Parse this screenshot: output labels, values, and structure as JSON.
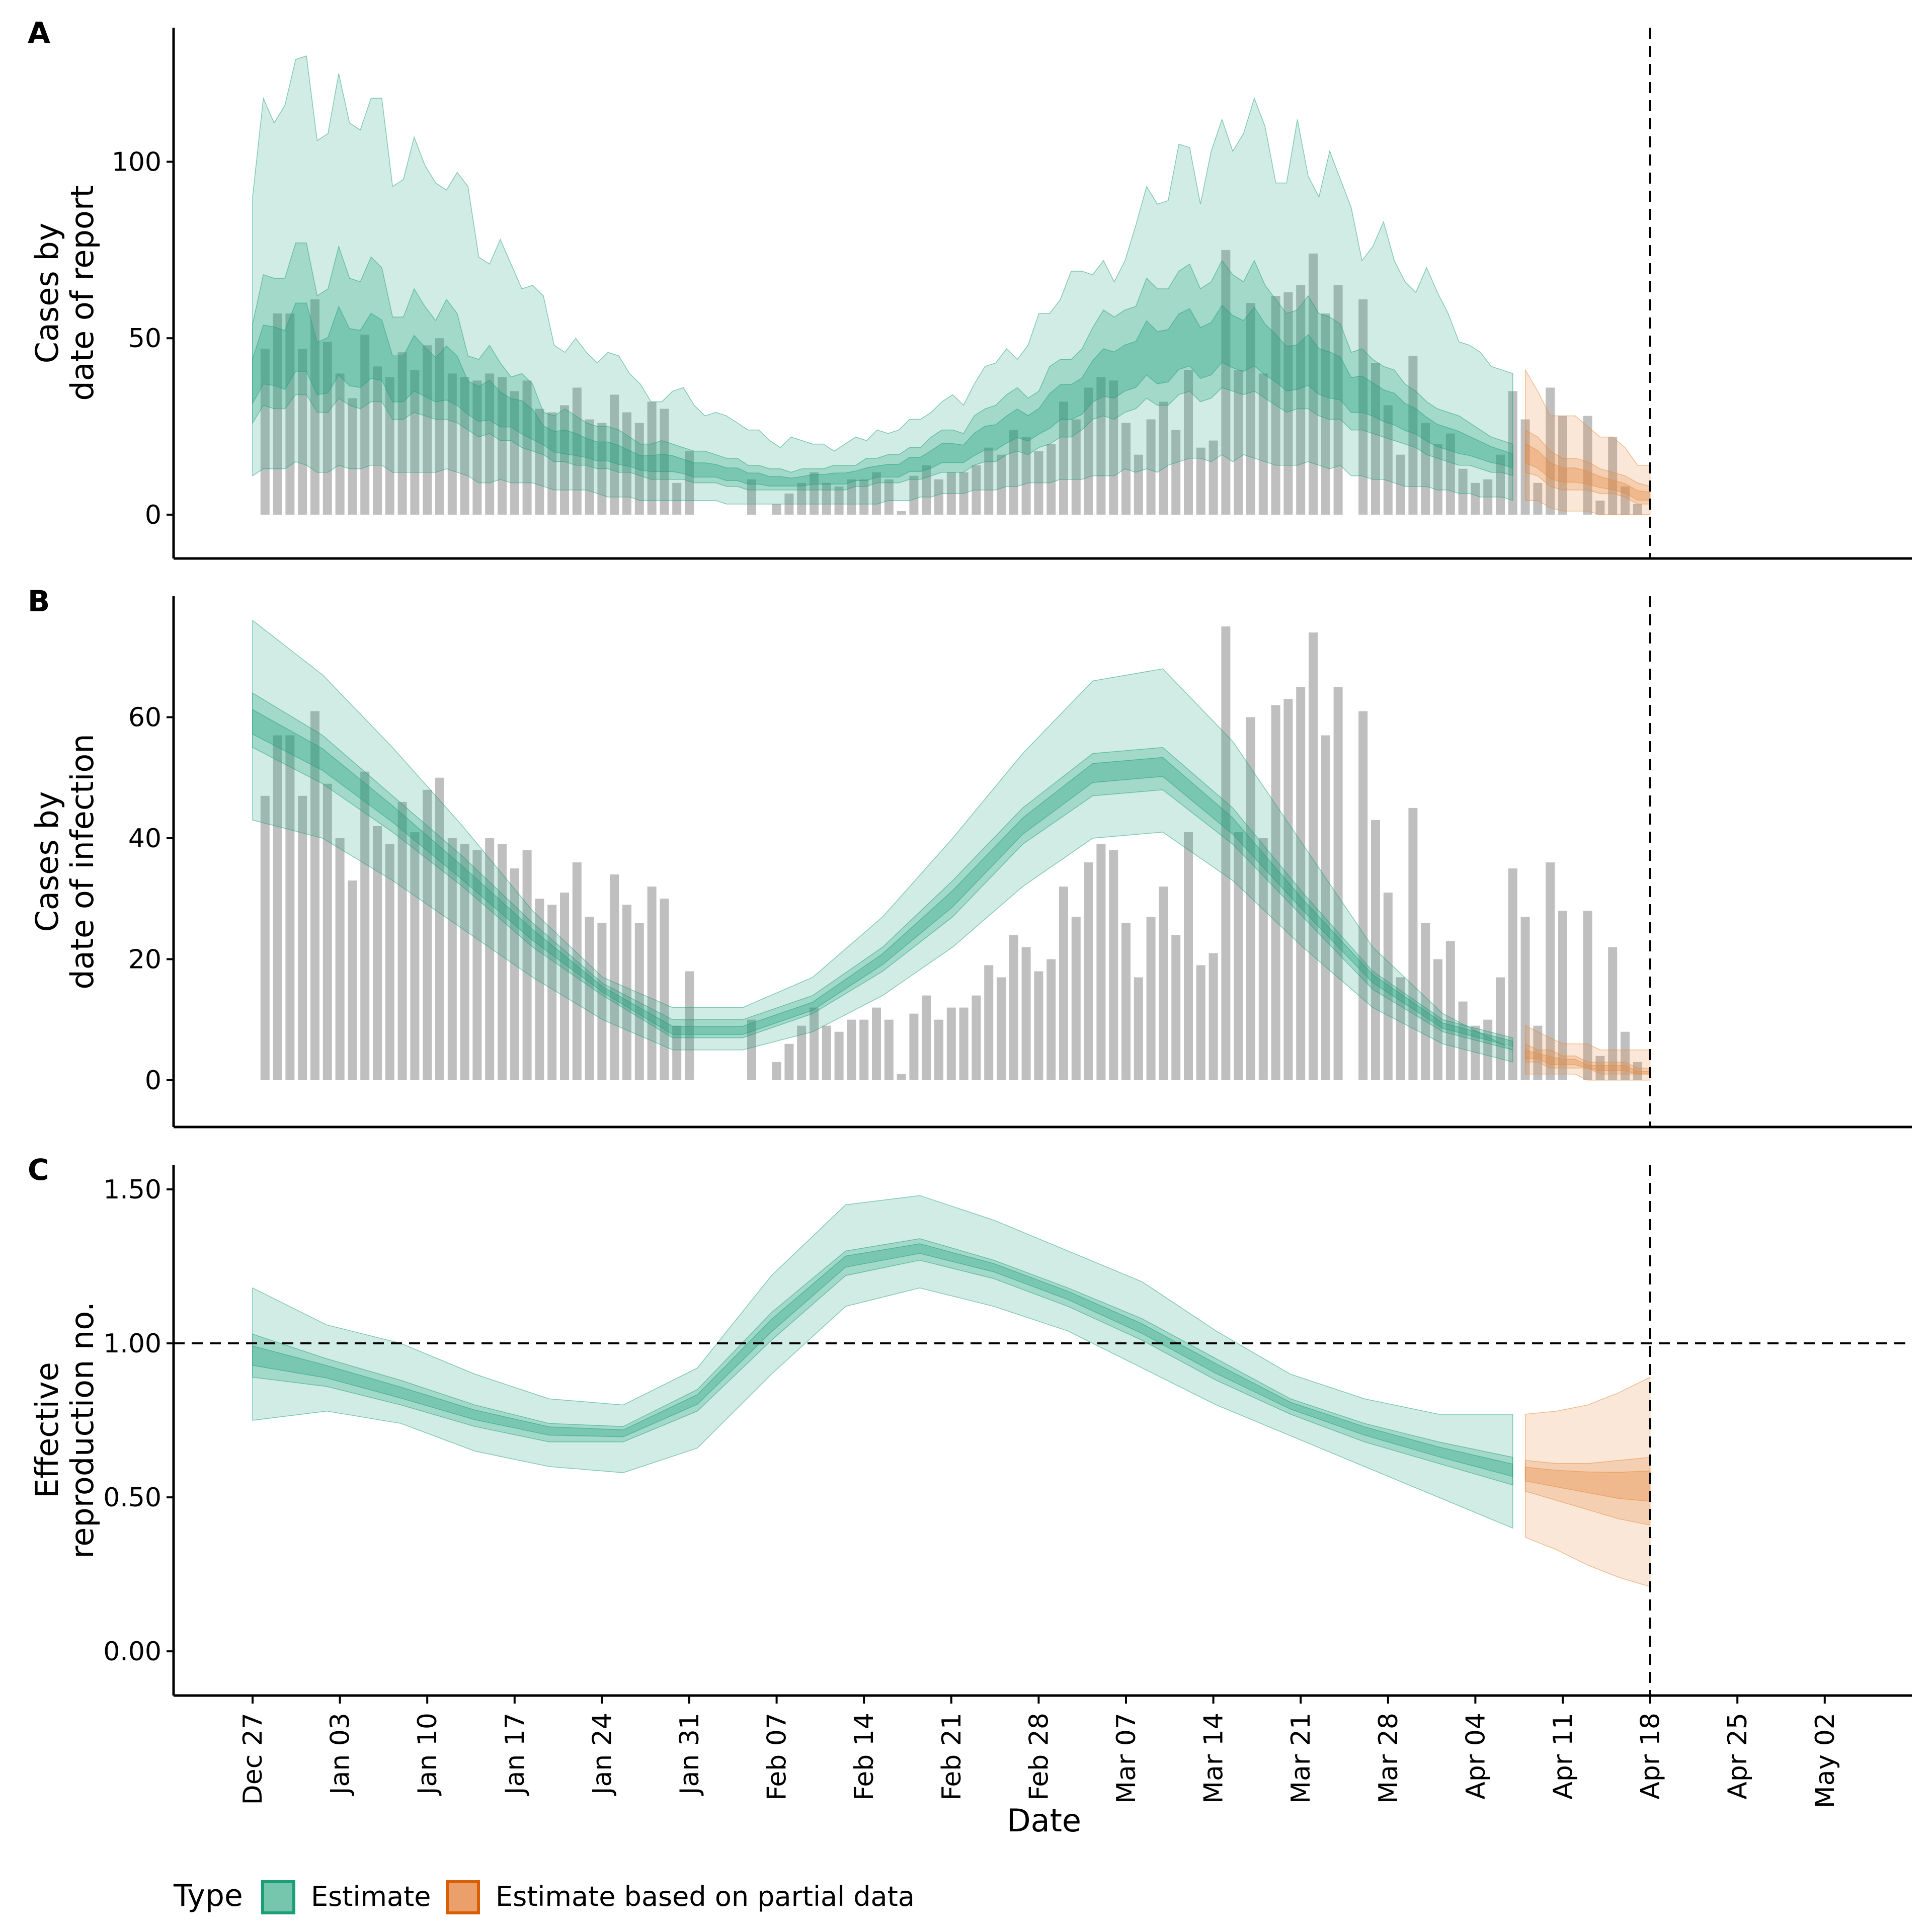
{
  "colors": {
    "estimate_fill": "#1b9e77",
    "partial_fill": "#e6873a",
    "estimate_legend": "#76c6ae",
    "estimate_legend_border": "#1b9e77",
    "partial_legend": "#eba06b",
    "partial_legend_border": "#d95f02",
    "bars": "#a6a6a6"
  },
  "legend": {
    "title": "Type",
    "items": [
      {
        "label": "Estimate"
      },
      {
        "label": "Estimate based on partial data"
      }
    ]
  },
  "chart_data": [
    {
      "type": "area",
      "panel": "A",
      "ylabel_line1": "Cases by",
      "ylabel_line2": "date of report",
      "ylim": [
        -6,
        138
      ],
      "yticks": [
        0,
        50,
        100
      ],
      "ytick_labels": [
        "0",
        "50",
        "100"
      ],
      "series_note": "Observed cases (bars) with median, 50% and 90% credible intervals for reported cases",
      "estimate": {
        "start_date": "Dec 27",
        "end_date": "Apr 07",
        "upper90": [
          90,
          118,
          111,
          116,
          129,
          130,
          106,
          108,
          125,
          111,
          109,
          118,
          118,
          93,
          95,
          107,
          99,
          94,
          92,
          97,
          93,
          73,
          71,
          78,
          71,
          64,
          65,
          62,
          48,
          46,
          50,
          46,
          43,
          46,
          45,
          40,
          37,
          32,
          32,
          35,
          36,
          31,
          28,
          29,
          28,
          26,
          24,
          24,
          21,
          19,
          22,
          21,
          20,
          20,
          18,
          20,
          22,
          21,
          24,
          23,
          24,
          27,
          27,
          29,
          32,
          34,
          31,
          37,
          42,
          43,
          47,
          44,
          48,
          57,
          57,
          61,
          69,
          69,
          68,
          72,
          66,
          72,
          82,
          93,
          88,
          89,
          105,
          104,
          88,
          103,
          112,
          103,
          108,
          118,
          110,
          94,
          94,
          112,
          96,
          90,
          103,
          95,
          87,
          72,
          76,
          83,
          72,
          66,
          63,
          70,
          63,
          57,
          49,
          48,
          46,
          42,
          41,
          40
        ],
        "upper50": [
          54,
          68,
          67,
          67,
          77,
          77,
          62,
          64,
          76,
          67,
          66,
          73,
          70,
          56,
          56,
          64,
          59,
          55,
          61,
          57,
          45,
          44,
          48,
          43,
          39,
          40,
          37,
          29,
          28,
          30,
          28,
          26,
          25,
          25,
          24,
          22,
          20,
          20,
          21,
          20,
          19,
          18,
          18,
          17,
          16,
          16,
          14,
          14,
          13,
          13,
          12,
          13,
          13,
          13,
          14,
          14,
          14,
          16,
          16,
          17,
          17,
          19,
          19,
          22,
          24,
          24,
          23,
          28,
          30,
          31,
          34,
          36,
          33,
          35,
          42,
          44,
          44,
          47,
          53,
          58,
          56,
          58,
          59,
          67,
          64,
          64,
          69,
          71,
          64,
          66,
          72,
          68,
          66,
          72,
          65,
          61,
          57,
          58,
          62,
          57,
          56,
          54,
          46,
          47,
          44,
          42,
          41,
          37,
          35,
          32,
          30,
          29,
          28,
          26,
          24,
          22,
          21,
          20
        ],
        "median": [
          36,
          42,
          42,
          40,
          46,
          46,
          38,
          39,
          45,
          41,
          41,
          44,
          43,
          36,
          36,
          40,
          38,
          36,
          37,
          35,
          32,
          30,
          30,
          28,
          28,
          26,
          24,
          22,
          20,
          19,
          19,
          18,
          17,
          17,
          16,
          15,
          14,
          14,
          14,
          14,
          13,
          12,
          12,
          12,
          11,
          11,
          10,
          10,
          9,
          9,
          9,
          9,
          10,
          10,
          10,
          10,
          11,
          11,
          12,
          12,
          12,
          14,
          14,
          15,
          17,
          17,
          17,
          19,
          21,
          21,
          23,
          25,
          24,
          26,
          28,
          31,
          31,
          32,
          36,
          38,
          38,
          40,
          41,
          45,
          42,
          43,
          47,
          48,
          44,
          45,
          49,
          47,
          46,
          48,
          45,
          43,
          40,
          40,
          42,
          39,
          38,
          37,
          33,
          33,
          32,
          30,
          29,
          27,
          26,
          24,
          22,
          21,
          20,
          19,
          18,
          17,
          16,
          15
        ],
        "lower50": [
          26,
          31,
          30,
          30,
          34,
          34,
          29,
          29,
          33,
          31,
          30,
          32,
          32,
          27,
          27,
          29,
          28,
          27,
          27,
          26,
          24,
          22,
          23,
          21,
          21,
          19,
          18,
          17,
          15,
          15,
          14,
          14,
          13,
          13,
          12,
          12,
          11,
          10,
          10,
          10,
          10,
          9,
          9,
          9,
          8,
          8,
          7,
          7,
          7,
          7,
          7,
          7,
          7,
          7,
          7,
          7,
          8,
          8,
          9,
          9,
          9,
          10,
          10,
          11,
          12,
          12,
          12,
          14,
          15,
          15,
          17,
          18,
          17,
          19,
          20,
          22,
          22,
          24,
          27,
          28,
          27,
          29,
          30,
          33,
          31,
          31,
          34,
          35,
          32,
          33,
          36,
          35,
          34,
          35,
          33,
          31,
          29,
          30,
          30,
          28,
          27,
          27,
          24,
          24,
          23,
          22,
          21,
          20,
          19,
          17,
          16,
          15,
          14,
          14,
          13,
          12,
          12,
          11
        ],
        "lower90": [
          11,
          13,
          13,
          13,
          15,
          14,
          12,
          12,
          14,
          13,
          13,
          14,
          14,
          12,
          12,
          12,
          12,
          12,
          13,
          12,
          11,
          9,
          9,
          10,
          9,
          9,
          9,
          8,
          7,
          7,
          7,
          7,
          6,
          5,
          5,
          5,
          4,
          4,
          4,
          4,
          4,
          4,
          4,
          4,
          3,
          3,
          3,
          3,
          3,
          3,
          3,
          3,
          3,
          3,
          3,
          3,
          3,
          3,
          3,
          4,
          4,
          4,
          5,
          5,
          6,
          6,
          6,
          7,
          7,
          7,
          8,
          8,
          9,
          9,
          9,
          10,
          10,
          10,
          11,
          11,
          11,
          13,
          12,
          13,
          12,
          14,
          15,
          16,
          16,
          15,
          17,
          15,
          17,
          16,
          15,
          14,
          14,
          14,
          15,
          14,
          13,
          14,
          11,
          11,
          10,
          10,
          9,
          8,
          8,
          8,
          7,
          7,
          6,
          6,
          5,
          5,
          5,
          4
        ]
      },
      "partial": {
        "start_date": "Apr 08",
        "end_date": "Apr 18",
        "upper90": [
          41,
          35,
          28,
          28,
          28,
          25,
          22,
          22,
          19,
          14,
          14
        ],
        "upper50": [
          24,
          22,
          18,
          16,
          16,
          15,
          13,
          12,
          11,
          9,
          8
        ],
        "median": [
          17,
          15,
          12,
          11,
          11,
          10,
          9,
          8,
          7,
          5,
          5
        ],
        "lower50": [
          12,
          11,
          8,
          7,
          7,
          7,
          6,
          6,
          5,
          3,
          3
        ],
        "lower90": [
          4,
          4,
          2,
          1,
          1,
          1,
          0,
          0,
          0,
          0,
          0
        ]
      }
    },
    {
      "type": "area",
      "panel": "B",
      "ylabel_line1": "Cases by",
      "ylabel_line2": "date of infection",
      "ylim": [
        -4,
        80
      ],
      "yticks": [
        0,
        20,
        40,
        60
      ],
      "ytick_labels": [
        "0",
        "20",
        "40",
        "60"
      ],
      "observed_bars": {
        "start_date": "Dec 28",
        "values": [
          47,
          57,
          57,
          47,
          61,
          49,
          40,
          33,
          51,
          42,
          39,
          46,
          41,
          48,
          50,
          40,
          39,
          38,
          40,
          39,
          35,
          38,
          30,
          29,
          31,
          36,
          27,
          26,
          34,
          29,
          26,
          32,
          30,
          9,
          18,
          0,
          0,
          0,
          0,
          10,
          0,
          3,
          6,
          9,
          12,
          9,
          8,
          10,
          10,
          12,
          10,
          1,
          11,
          14,
          10,
          12,
          12,
          14,
          19,
          17,
          24,
          22,
          18,
          20,
          32,
          27,
          36,
          39,
          38,
          26,
          17,
          27,
          32,
          24,
          41,
          19,
          21,
          75,
          41,
          60,
          40,
          62,
          63,
          65,
          74,
          57,
          65,
          0,
          61,
          43,
          31,
          17,
          45,
          26,
          20,
          23,
          13,
          9,
          10,
          17,
          35,
          27,
          9,
          36,
          28,
          0,
          28,
          4,
          22,
          8,
          3
        ]
      },
      "estimate": {
        "start_date": "Dec 27",
        "end_date": "Apr 07",
        "points_every_days": 7,
        "upper90": [
          76,
          67,
          55,
          42,
          28,
          17,
          12,
          12,
          17,
          27,
          40,
          54,
          66,
          68,
          56,
          39,
          22,
          11,
          5
        ],
        "upper50": [
          64,
          57,
          47,
          37,
          26,
          16,
          10,
          10,
          14,
          22,
          33,
          45,
          54,
          55,
          45,
          31,
          18,
          10,
          7
        ],
        "median": [
          59,
          53,
          44,
          34,
          24,
          15,
          8,
          8,
          12,
          20,
          30,
          42,
          51,
          52,
          42,
          29,
          17,
          9,
          6
        ],
        "lower50": [
          55,
          49,
          41,
          32,
          22,
          14,
          7,
          7,
          11,
          18,
          27,
          39,
          47,
          48,
          39,
          27,
          15,
          8,
          5
        ],
        "lower90": [
          43,
          40,
          33,
          25,
          17,
          10,
          5,
          5,
          8,
          14,
          22,
          32,
          40,
          41,
          33,
          22,
          12,
          6,
          3
        ]
      },
      "partial": {
        "start_date": "Apr 08",
        "end_date": "Apr 18",
        "upper90": [
          9,
          8,
          7,
          6,
          6,
          6,
          5,
          5,
          5,
          5,
          5
        ],
        "upper50": [
          6,
          5,
          5,
          4,
          4,
          3,
          3,
          3,
          3,
          2,
          2
        ],
        "median": [
          4,
          4,
          3,
          3,
          3,
          2,
          2,
          2,
          2,
          1,
          1
        ],
        "lower50": [
          3,
          3,
          2,
          2,
          2,
          2,
          1,
          1,
          1,
          1,
          1
        ],
        "lower90": [
          1,
          1,
          1,
          1,
          1,
          0,
          0,
          0,
          0,
          0,
          0
        ]
      }
    },
    {
      "type": "area",
      "panel": "C",
      "ylabel_line1": "Effective",
      "ylabel_line2": "reproduction no.",
      "ylim": [
        -0.07,
        1.58
      ],
      "yticks": [
        0,
        0.5,
        1.0,
        1.5
      ],
      "ytick_labels": [
        "0.00",
        "0.50",
        "1.00",
        "1.50"
      ],
      "reference_line": 1.0,
      "estimate": {
        "start_date": "Dec 27",
        "end_date": "Apr 07",
        "points_every_days": 7,
        "upper90": [
          1.18,
          1.06,
          1.0,
          0.9,
          0.82,
          0.8,
          0.92,
          1.22,
          1.45,
          1.48,
          1.4,
          1.3,
          1.2,
          1.04,
          0.9,
          0.82,
          0.77,
          0.77
        ],
        "upper50": [
          1.03,
          0.95,
          0.88,
          0.8,
          0.74,
          0.73,
          0.85,
          1.1,
          1.3,
          1.34,
          1.27,
          1.18,
          1.08,
          0.95,
          0.82,
          0.74,
          0.68,
          0.63
        ],
        "median": [
          0.96,
          0.91,
          0.84,
          0.77,
          0.72,
          0.71,
          0.82,
          1.06,
          1.27,
          1.31,
          1.25,
          1.16,
          1.05,
          0.92,
          0.8,
          0.72,
          0.65,
          0.59
        ],
        "lower50": [
          0.89,
          0.86,
          0.8,
          0.73,
          0.68,
          0.68,
          0.78,
          1.01,
          1.22,
          1.27,
          1.21,
          1.12,
          1.01,
          0.88,
          0.77,
          0.68,
          0.61,
          0.54
        ],
        "lower90": [
          0.75,
          0.78,
          0.74,
          0.65,
          0.6,
          0.58,
          0.66,
          0.9,
          1.12,
          1.18,
          1.12,
          1.04,
          0.92,
          0.8,
          0.7,
          0.6,
          0.5,
          0.4
        ]
      },
      "partial": {
        "start_date": "Apr 08",
        "end_date": "Apr 18",
        "upper90": [
          0.77,
          0.78,
          0.8,
          0.84,
          0.89
        ],
        "upper50": [
          0.62,
          0.61,
          0.61,
          0.62,
          0.63
        ],
        "median": [
          0.58,
          0.57,
          0.56,
          0.55,
          0.55
        ],
        "lower50": [
          0.52,
          0.49,
          0.46,
          0.43,
          0.41
        ],
        "lower90": [
          0.37,
          0.33,
          0.28,
          0.24,
          0.21
        ]
      }
    }
  ],
  "xaxis": {
    "title": "Date",
    "tick_labels": [
      "Dec 27",
      "Jan 03",
      "Jan 10",
      "Jan 17",
      "Jan 24",
      "Jan 31",
      "Feb 07",
      "Feb 14",
      "Feb 21",
      "Feb 28",
      "Mar 07",
      "Mar 14",
      "Mar 21",
      "Mar 28",
      "Apr 04",
      "Apr 11",
      "Apr 18",
      "Apr 25",
      "May 02"
    ],
    "range_days": [
      -6.5,
      134
    ],
    "vline_date_index": 112
  },
  "panel_tags": [
    "A",
    "B",
    "C"
  ]
}
